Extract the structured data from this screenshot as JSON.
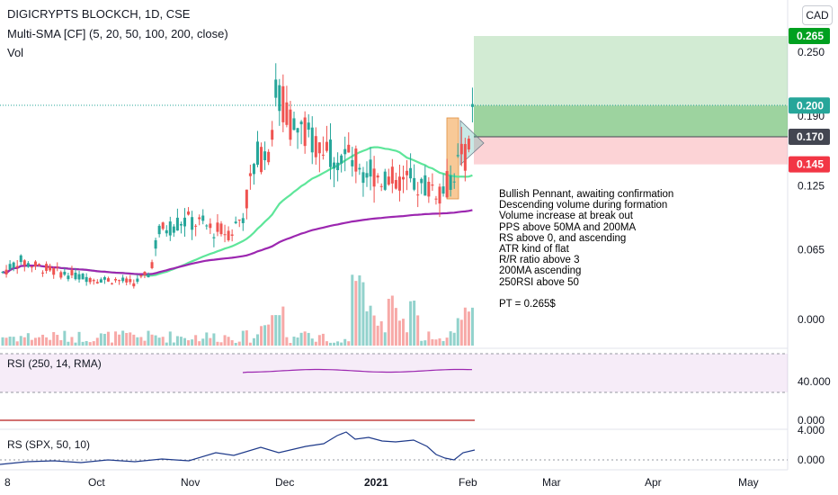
{
  "header": {
    "title": "DIGICRYPTS BLOCKCH, 1D, CSE",
    "indicator": "Multi-SMA [CF] (5, 20, 50, 100, 200, close)",
    "volume": "Vol",
    "currency": "CAD"
  },
  "panes": {
    "rsi_label": "RSI (250, 14, RMA)",
    "rs_label": "RS (SPX, 50, 10)"
  },
  "annotation": {
    "lines": [
      "Bullish Pennant, awaiting confirmation",
      "Descending volume during formation",
      "Volume increase at break out",
      "PPS above 50MA and 200MA",
      "RS above 0, and ascending",
      "ATR kind of flat",
      "R/R ratio above 3",
      "200MA ascending",
      "250RSI above 50",
      "",
      "PT = 0.265$"
    ]
  },
  "colors": {
    "up": "#26a69a",
    "down": "#ef5350",
    "sma50": "#5ee69a",
    "sma200": "#9c27b0",
    "rsi": "#9c27b0",
    "rs": "#1e3a8a",
    "target": "#00a020",
    "current": "#434651",
    "stop": "#f23645"
  },
  "chart_data": {
    "type": "candlestick",
    "y_axis_ticks": [
      "0.250",
      "0.190",
      "0.125",
      "0.065",
      "0.000"
    ],
    "x_axis_ticks": [
      "8",
      "Oct",
      "Nov",
      "Dec",
      "2021",
      "Feb",
      "Mar",
      "Apr",
      "May"
    ],
    "price_labels": {
      "target": "0.265",
      "entry": "0.200",
      "current": "0.170",
      "stop": "0.145"
    },
    "position": {
      "entry": 0.2,
      "target": 0.265,
      "stop": 0.145
    },
    "rsi": {
      "ticks": [
        "40.000",
        "0.000"
      ],
      "approx_value": 52
    },
    "rs": {
      "ticks": [
        "4.000",
        "0.000"
      ]
    }
  }
}
